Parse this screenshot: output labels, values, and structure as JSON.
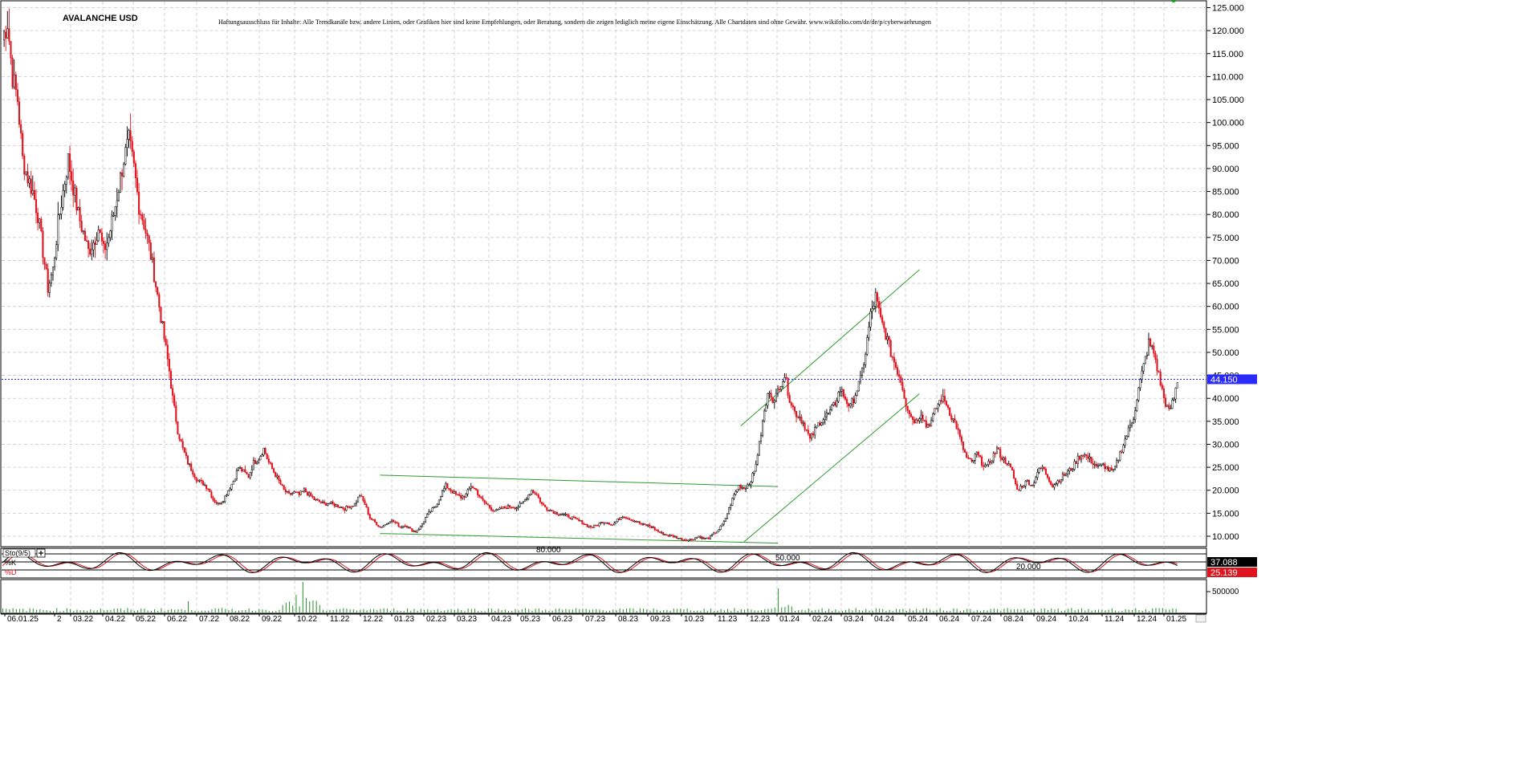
{
  "chart_data": {
    "type": "candlestick",
    "title": "AVALANCHE USD",
    "disclaimer": "Haftungsausschluss für Inhalte: Alle Trendkanäle bzw. andere Linien, oder Grafiken hier sind keine Empfehlungen, oder Beratung, sondern die zeigen lediglich meine eigene Einschätzung. Alle Chartdaten sind ohne Gewähr.   www.wikifolio.com/de/de/p/cyberwaehrungen",
    "y_axis": {
      "min": 7.0,
      "max": 126.0,
      "ticks": [
        10,
        15,
        20,
        25,
        30,
        35,
        40,
        45,
        50,
        55,
        60,
        65,
        70,
        75,
        80,
        85,
        90,
        95,
        100,
        105,
        110,
        115,
        120,
        125
      ],
      "tick_labels": [
        "10.000",
        "15.000",
        "20.000",
        "25.000",
        "30.000",
        "35.000",
        "40.000",
        "45.000",
        "50.000",
        "55.000",
        "60.000",
        "65.000",
        "70.000",
        "75.000",
        "80.000",
        "85.000",
        "90.000",
        "95.000",
        "100.000",
        "105.000",
        "110.000",
        "115.000",
        "120.000",
        "125.000"
      ]
    },
    "x_axis": {
      "ticks": [
        "06.01.25",
        "2",
        "03.22",
        "04.22",
        "05.22",
        "06.22",
        "07.22",
        "08.22",
        "09.22",
        "10.22",
        "11.22",
        "12.22",
        "01.23",
        "02.23",
        "03.23",
        "04.23",
        "05.23",
        "06.23",
        "07.23",
        "08.23",
        "09.23",
        "10.23",
        "11.23",
        "12.23",
        "01.24",
        "02.24",
        "03.24",
        "04.24",
        "05.24",
        "06.24",
        "07.24",
        "08.24",
        "09.24",
        "10.24",
        "11.24",
        "12.24",
        "01.25"
      ]
    },
    "current_price": 44.15,
    "current_price_label": "44.150",
    "price_anchors": [
      [
        0,
        118
      ],
      [
        3,
        122
      ],
      [
        6,
        110
      ],
      [
        9,
        105
      ],
      [
        12,
        92
      ],
      [
        15,
        88
      ],
      [
        18,
        85
      ],
      [
        21,
        80
      ],
      [
        24,
        72
      ],
      [
        27,
        64
      ],
      [
        30,
        68
      ],
      [
        33,
        78
      ],
      [
        36,
        85
      ],
      [
        39,
        92
      ],
      [
        42,
        86
      ],
      [
        45,
        80
      ],
      [
        48,
        76
      ],
      [
        51,
        72
      ],
      [
        54,
        74
      ],
      [
        57,
        77
      ],
      [
        60,
        72
      ],
      [
        63,
        75
      ],
      [
        66,
        80
      ],
      [
        69,
        86
      ],
      [
        72,
        92
      ],
      [
        75,
        96
      ],
      [
        78,
        90
      ],
      [
        81,
        82
      ],
      [
        84,
        78
      ],
      [
        87,
        73
      ],
      [
        90,
        67
      ],
      [
        93,
        60
      ],
      [
        96,
        53
      ],
      [
        99,
        46
      ],
      [
        101,
        40
      ],
      [
        104,
        33
      ],
      [
        107,
        29
      ],
      [
        110,
        26
      ],
      [
        113,
        24
      ],
      [
        116,
        22
      ],
      [
        119,
        21.5
      ],
      [
        122,
        20.5
      ],
      [
        125,
        18
      ],
      [
        128,
        17
      ],
      [
        131,
        18
      ],
      [
        134,
        20
      ],
      [
        137,
        22
      ],
      [
        140,
        25
      ],
      [
        143,
        24
      ],
      [
        146,
        23
      ],
      [
        149,
        26
      ],
      [
        152,
        27
      ],
      [
        155,
        29
      ],
      [
        158,
        26
      ],
      [
        161,
        24
      ],
      [
        164,
        22
      ],
      [
        167,
        20
      ],
      [
        170,
        19
      ],
      [
        173,
        19.5
      ],
      [
        176,
        19
      ],
      [
        179,
        20
      ],
      [
        182,
        19
      ],
      [
        185,
        18
      ],
      [
        188,
        17.5
      ],
      [
        191,
        17
      ],
      [
        194,
        17.2
      ],
      [
        197,
        16.8
      ],
      [
        200,
        16.5
      ],
      [
        203,
        16
      ],
      [
        206,
        16.5
      ],
      [
        209,
        17
      ],
      [
        212,
        19
      ],
      [
        215,
        17
      ],
      [
        218,
        14
      ],
      [
        221,
        13
      ],
      [
        224,
        12
      ],
      [
        227,
        12.5
      ],
      [
        230,
        13.5
      ],
      [
        233,
        13
      ],
      [
        236,
        12
      ],
      [
        239,
        12.5
      ],
      [
        242,
        11.5
      ],
      [
        245,
        11
      ],
      [
        248,
        12
      ],
      [
        251,
        14
      ],
      [
        254,
        15.5
      ],
      [
        257,
        16.5
      ],
      [
        260,
        19
      ],
      [
        263,
        21
      ],
      [
        266,
        20
      ],
      [
        269,
        19
      ],
      [
        272,
        18.5
      ],
      [
        275,
        19
      ],
      [
        278,
        21
      ],
      [
        281,
        20
      ],
      [
        284,
        18
      ],
      [
        287,
        17
      ],
      [
        290,
        16
      ],
      [
        293,
        15.5
      ],
      [
        296,
        16
      ],
      [
        299,
        16.3
      ],
      [
        302,
        16.5
      ],
      [
        305,
        16.3
      ],
      [
        308,
        17
      ],
      [
        311,
        18.5
      ],
      [
        314,
        20
      ],
      [
        317,
        19
      ],
      [
        320,
        17
      ],
      [
        323,
        16
      ],
      [
        326,
        15.5
      ],
      [
        329,
        15
      ],
      [
        332,
        14.8
      ],
      [
        335,
        14.3
      ],
      [
        338,
        14
      ],
      [
        341,
        13.5
      ],
      [
        344,
        13
      ],
      [
        347,
        12.3
      ],
      [
        350,
        12
      ],
      [
        353,
        12.5
      ],
      [
        356,
        13.2
      ],
      [
        359,
        13
      ],
      [
        362,
        12.5
      ],
      [
        365,
        13.5
      ],
      [
        368,
        14.5
      ],
      [
        371,
        14
      ],
      [
        374,
        13.5
      ],
      [
        377,
        13
      ],
      [
        380,
        12.5
      ],
      [
        383,
        12.3
      ],
      [
        386,
        11.8
      ],
      [
        389,
        11
      ],
      [
        392,
        10.5
      ],
      [
        395,
        10.2
      ],
      [
        398,
        10
      ],
      [
        401,
        9.6
      ],
      [
        404,
        9.3
      ],
      [
        407,
        9.2
      ],
      [
        410,
        9.5
      ],
      [
        413,
        10
      ],
      [
        416,
        9.4
      ],
      [
        419,
        9.6
      ],
      [
        422,
        10.5
      ],
      [
        425,
        11.5
      ],
      [
        428,
        13
      ],
      [
        431,
        16
      ],
      [
        434,
        19
      ],
      [
        437,
        21
      ],
      [
        440,
        20.5
      ],
      [
        443,
        21.5
      ],
      [
        446,
        24
      ],
      [
        449,
        30
      ],
      [
        452,
        37
      ],
      [
        455,
        42
      ],
      [
        458,
        39
      ],
      [
        461,
        43
      ],
      [
        464,
        45
      ],
      [
        467,
        40
      ],
      [
        470,
        37
      ],
      [
        473,
        36
      ],
      [
        476,
        34
      ],
      [
        479,
        31
      ],
      [
        482,
        33
      ],
      [
        485,
        35
      ],
      [
        488,
        36
      ],
      [
        491,
        37
      ],
      [
        494,
        39
      ],
      [
        497,
        42
      ],
      [
        500,
        40
      ],
      [
        503,
        38
      ],
      [
        506,
        41
      ],
      [
        509,
        44
      ],
      [
        512,
        50
      ],
      [
        515,
        58
      ],
      [
        518,
        62
      ],
      [
        521,
        57
      ],
      [
        524,
        54
      ],
      [
        527,
        50
      ],
      [
        530,
        47
      ],
      [
        533,
        44
      ],
      [
        536,
        39
      ],
      [
        539,
        36
      ],
      [
        542,
        35
      ],
      [
        545,
        37
      ],
      [
        548,
        34
      ],
      [
        551,
        35
      ],
      [
        554,
        38
      ],
      [
        557,
        40
      ],
      [
        560,
        39
      ],
      [
        563,
        36
      ],
      [
        566,
        34
      ],
      [
        569,
        30
      ],
      [
        572,
        27
      ],
      [
        575,
        26
      ],
      [
        578,
        28
      ],
      [
        581,
        26
      ],
      [
        584,
        25
      ],
      [
        587,
        27
      ],
      [
        590,
        29
      ],
      [
        593,
        27
      ],
      [
        596,
        26
      ],
      [
        599,
        24
      ],
      [
        602,
        20
      ],
      [
        605,
        21
      ],
      [
        608,
        22
      ],
      [
        611,
        21
      ],
      [
        614,
        24
      ],
      [
        617,
        25
      ],
      [
        620,
        23
      ],
      [
        623,
        21
      ],
      [
        626,
        22
      ],
      [
        629,
        23
      ],
      [
        632,
        24
      ],
      [
        635,
        25
      ],
      [
        638,
        27
      ],
      [
        641,
        28
      ],
      [
        644,
        27
      ],
      [
        647,
        26
      ],
      [
        650,
        25
      ],
      [
        653,
        25.5
      ],
      [
        656,
        24.5
      ],
      [
        659,
        24
      ],
      [
        662,
        27
      ],
      [
        665,
        30
      ],
      [
        668,
        33
      ],
      [
        671,
        36
      ],
      [
        674,
        42
      ],
      [
        677,
        47
      ],
      [
        680,
        52
      ],
      [
        683,
        50
      ],
      [
        686,
        45
      ],
      [
        689,
        40
      ],
      [
        692,
        37
      ],
      [
        695,
        40
      ],
      [
        697,
        44
      ]
    ],
    "trendlines": [
      {
        "color": "#2e9a2e",
        "from": [
          224.0,
          23.3
        ],
        "to": [
          460.0,
          20.8
        ]
      },
      {
        "color": "#2e9a2e",
        "from": [
          224.0,
          10.6
        ],
        "to": [
          460.0,
          8.5
        ]
      },
      {
        "color": "#2e9a2e",
        "from": [
          438.0,
          34.0
        ],
        "to": [
          544.0,
          68.0
        ]
      },
      {
        "color": "#2e9a2e",
        "from": [
          440.0,
          8.8
        ],
        "to": [
          544.0,
          41.0
        ]
      }
    ],
    "colors": {
      "up": "#000000",
      "down": "#e0141e",
      "trendline": "#2e9a2e",
      "price_line": "#2a2aff",
      "grid": "#c8c8c8"
    }
  },
  "stochastic": {
    "label": "Sto(9/5)",
    "k_label": "%K",
    "d_label": "%D",
    "levels": [
      "80.000",
      "50.000",
      "20.000"
    ],
    "k_value": "37.088",
    "d_value": "25.139",
    "k_color": "#000000",
    "d_color": "#e0141e"
  },
  "volume": {
    "tick_label": "500000"
  }
}
